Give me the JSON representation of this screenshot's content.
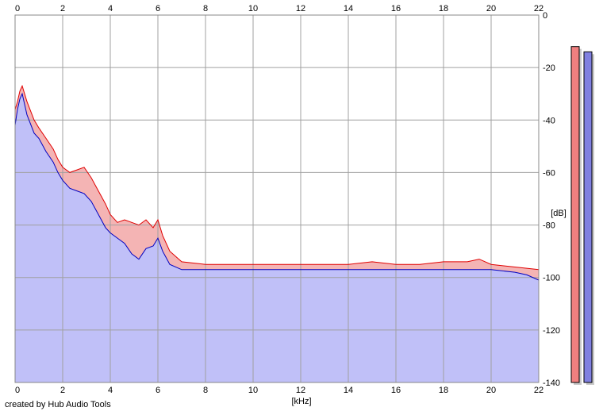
{
  "credit": "created by Hub Audio Tools",
  "chart_data": {
    "type": "area",
    "title": "",
    "xlabel": "[kHz]",
    "ylabel": "[dB]",
    "xlim": [
      0,
      22
    ],
    "ylim": [
      -140,
      0
    ],
    "x_ticks": [
      0,
      2,
      4,
      6,
      8,
      10,
      12,
      14,
      16,
      18,
      20,
      22
    ],
    "y_ticks": [
      0,
      -20,
      -40,
      -60,
      -80,
      -100,
      -120,
      -140
    ],
    "y_tick_labels": [
      "0",
      "-20",
      "-40",
      "-60",
      "-80",
      "-100",
      "-120",
      "-140"
    ],
    "grid": true,
    "series": [
      {
        "color": "#e00000",
        "fill": "#f4b4b4",
        "x": [
          0,
          0.1,
          0.2,
          0.3,
          0.5,
          0.8,
          1.0,
          1.3,
          1.6,
          1.8,
          2.0,
          2.3,
          2.6,
          2.9,
          3.2,
          3.5,
          3.8,
          4.0,
          4.3,
          4.6,
          4.9,
          5.2,
          5.5,
          5.8,
          6.0,
          6.2,
          6.5,
          7.0,
          8.0,
          9.0,
          10.0,
          11.0,
          12.0,
          13.0,
          14.0,
          15.0,
          16.0,
          17.0,
          18.0,
          19.0,
          19.5,
          20.0,
          21.0,
          22.0
        ],
        "y": [
          -36,
          -33,
          -29,
          -27,
          -33,
          -40,
          -43,
          -47,
          -51,
          -55,
          -58,
          -60,
          -59,
          -58,
          -62,
          -67,
          -72,
          -76,
          -79,
          -78,
          -79,
          -80,
          -78,
          -81,
          -78,
          -84,
          -90,
          -94,
          -95,
          -95,
          -95,
          -95,
          -95,
          -95,
          -95,
          -94,
          -95,
          -95,
          -94,
          -94,
          -93,
          -95,
          -96,
          -97
        ]
      },
      {
        "color": "#0000c0",
        "fill": "#c0c0f8",
        "x": [
          0,
          0.1,
          0.2,
          0.3,
          0.5,
          0.8,
          1.0,
          1.3,
          1.6,
          1.8,
          2.0,
          2.3,
          2.6,
          2.9,
          3.2,
          3.5,
          3.8,
          4.0,
          4.3,
          4.6,
          4.9,
          5.2,
          5.5,
          5.8,
          6.0,
          6.2,
          6.5,
          7.0,
          8.0,
          9.0,
          10.0,
          11.0,
          12.0,
          13.0,
          14.0,
          15.0,
          16.0,
          17.0,
          18.0,
          19.0,
          20.0,
          21.0,
          21.5,
          22.0
        ],
        "y": [
          -42,
          -36,
          -32,
          -30,
          -38,
          -45,
          -47,
          -52,
          -56,
          -60,
          -63,
          -66,
          -67,
          -68,
          -71,
          -76,
          -81,
          -83,
          -85,
          -87,
          -91,
          -93,
          -89,
          -88,
          -85,
          -90,
          -95,
          -97,
          -97,
          -97,
          -97,
          -97,
          -97,
          -97,
          -97,
          -97,
          -97,
          -97,
          -97,
          -97,
          -97,
          -98,
          -99,
          -101
        ]
      }
    ],
    "level_meters": [
      {
        "color": "#f08080",
        "top_db": -12
      },
      {
        "color": "#8080e0",
        "top_db": -14
      }
    ]
  }
}
